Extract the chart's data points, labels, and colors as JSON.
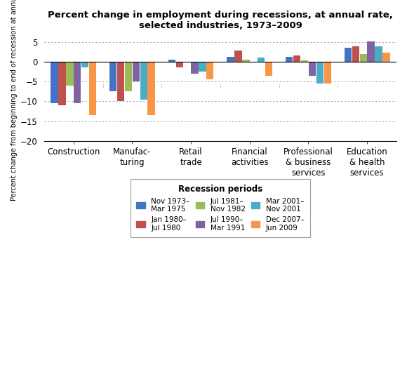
{
  "title": "Percent change in employment during recessions, at annual rate,\nselected industries, 1973–2009",
  "ylabel": "Percent change from beginning to end of recession at annual rate",
  "legend_title": "Recession periods",
  "categories": [
    "Construction",
    "Manufac-\nturing",
    "Retail\ntrade",
    "Financial\nactivities",
    "Professional\n& business\nservices",
    "Education\n& health\nservices"
  ],
  "recessions": [
    "Nov 1973–\nMar 1975",
    "Jan 1980–\nJul 1980",
    "Jul 1981–\nNov 1982",
    "Jul 1990–\nMar 1991",
    "Mar 2001–\nNov 2001",
    "Dec 2007–\nJun 2009"
  ],
  "colors": [
    "#4472C4",
    "#C0504D",
    "#9BBB59",
    "#8064A2",
    "#4BACC6",
    "#F79646"
  ],
  "data": {
    "Construction": [
      -10.5,
      -11.0,
      -6.0,
      -10.5,
      -1.5,
      -13.5
    ],
    "Manufac-\nturing": [
      -7.5,
      -10.0,
      -7.5,
      -5.0,
      -9.5,
      -13.5
    ],
    "Retail\ntrade": [
      0.5,
      -1.5,
      -0.2,
      -3.0,
      -2.5,
      -4.5
    ],
    "Financial\nactivities": [
      1.2,
      2.8,
      0.5,
      -0.2,
      1.0,
      -3.5
    ],
    "Professional\n& business\nservices": [
      1.3,
      1.5,
      0.3,
      -3.5,
      -5.5,
      -5.5
    ],
    "Education\n& health\nservices": [
      3.5,
      3.8,
      2.0,
      5.2,
      3.9,
      2.2
    ]
  },
  "ylim": [
    -20,
    7
  ],
  "yticks": [
    -20,
    -15,
    -10,
    -5,
    0,
    5
  ],
  "figsize": [
    5.8,
    5.5
  ],
  "dpi": 100
}
